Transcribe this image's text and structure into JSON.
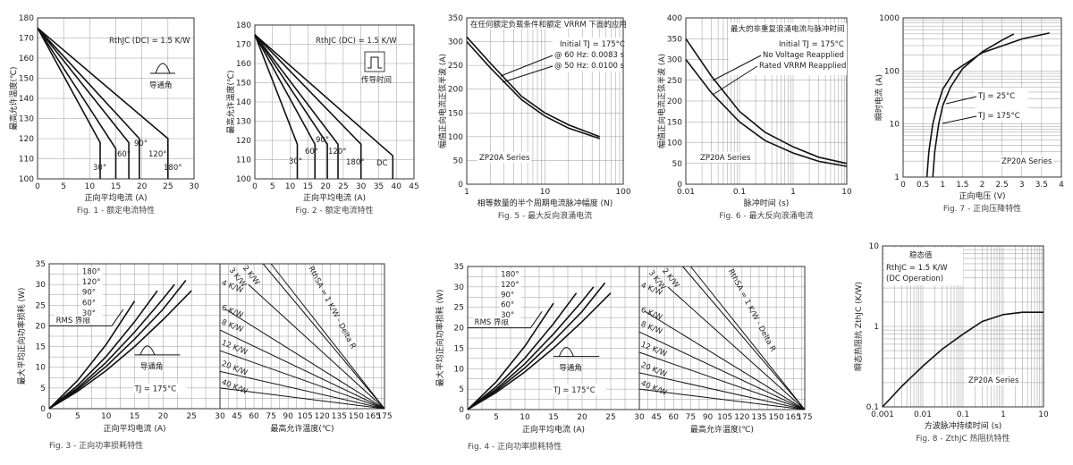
{
  "charts": [
    {
      "id": "fig1",
      "caption": "Fig. 1 - 额定电流特性",
      "xlabel": "正向平均电流 (A)",
      "ylabel": "最高允许温度(℃)",
      "annotations": [
        "RthJC (DC) = 1.5 K/W",
        "导通角"
      ],
      "curve_labels": [
        "30°",
        "60°",
        "90°",
        "120°",
        "180°"
      ]
    },
    {
      "id": "fig2",
      "caption": "Fig. 2 - 额定电流特性",
      "xlabel": "正向平均电流 (A)",
      "ylabel": "最高允许温度(℃)",
      "annotations": [
        "RthJC (DC) = 1.5 K/W",
        "传导时间"
      ],
      "curve_labels": [
        "30°",
        "60°",
        "90°",
        "120°",
        "180°",
        "DC"
      ]
    },
    {
      "id": "fig5",
      "caption": "Fig. 5 - 最大反向浪涌电流",
      "xlabel": "相等数量的半个周期电流脉冲幅度 (N)",
      "ylabel": "幅值正向电流正弦半波 (A)",
      "annotations": [
        "在任何额定负载条件和额定 VRRM 下面的应用",
        "Initial TJ = 175°C",
        "@ 60 Hz: 0.0083 s",
        "@ 50 Hz: 0.0100 s",
        "ZP20A Series"
      ]
    },
    {
      "id": "fig6",
      "caption": "Fig. 6 - 最大反向浪涌电流",
      "xlabel": "脉冲时间 (s)",
      "ylabel": "幅值正向电流正弦半波 (A)",
      "annotations": [
        "最大的非重复浪涌电流与脉冲时间",
        "Initial TJ = 175°C",
        "No Voltage Reapplied",
        "Rated VRRM Reapplied",
        "ZP20A Series"
      ]
    },
    {
      "id": "fig7",
      "caption": "Fig. 7 - 正向压降特性",
      "xlabel": "正向电压 (V)",
      "ylabel": "瞬时电流 (A)",
      "annotations": [
        "TJ = 25°C",
        "TJ = 175°C",
        "ZP20A Series"
      ]
    },
    {
      "id": "fig3",
      "caption": "Fig. 3 - 正向功率损耗特性",
      "xlabel_left": "正向平均电流 (A)",
      "xlabel_right": "最高允许温度(℃)",
      "ylabel": "最大平均正向功率损耗 (W)",
      "annotations": [
        "RMS 界限",
        "导通角",
        "TJ = 175°C",
        "RthSA = 1 K/W - Delta R"
      ],
      "curve_labels": [
        "180°",
        "120°",
        "90°",
        "60°",
        "30°"
      ],
      "rth_labels": [
        "3 K/W",
        "2 K/W",
        "4 K/W",
        "6 K/W",
        "8 K/W",
        "12 K/W",
        "20 K/W",
        "40 K/W"
      ]
    },
    {
      "id": "fig4",
      "caption": "Fig. 4 - 正向功率损耗特性",
      "xlabel_left": "正向平均电流 (A)",
      "xlabel_right": "最高允许温度(℃)",
      "ylabel": "最大平均正向功率损耗 (W)",
      "annotations": [
        "RMS 界限",
        "导通角",
        "TJ = 175°C",
        "RthSA = 1 K/W - Delta R"
      ],
      "curve_labels": [
        "180°",
        "120°",
        "90°",
        "60°",
        "30°"
      ],
      "rth_labels": [
        "3 K/W",
        "2 K/W",
        "4 K/W",
        "6 K/W",
        "8 K/W",
        "12 K/W",
        "20 K/W",
        "40 K/W"
      ]
    },
    {
      "id": "fig8",
      "caption": "Fig. 8 - ZthJC 热阻抗特性",
      "xlabel": "方波脉冲持续时间 (s)",
      "ylabel": "瞬态热阻抗 ZthJC (K/W)",
      "annotations": [
        "稳态值",
        "RthJC = 1.5 K/W",
        "(DC Operation)",
        "ZP20A Series"
      ]
    }
  ],
  "chart_data": [
    {
      "id": "fig1",
      "type": "line",
      "title": "",
      "xlabel": "正向平均电流 (A)",
      "ylabel": "最高允许温度(℃)",
      "xlim": [
        0,
        30
      ],
      "ylim": [
        100,
        180
      ],
      "xticks": [
        0,
        5,
        10,
        15,
        20,
        25,
        30
      ],
      "yticks": [
        100,
        110,
        120,
        130,
        140,
        150,
        160,
        170,
        180
      ],
      "series": [
        {
          "name": "30°",
          "x": [
            0,
            12,
            12
          ],
          "y": [
            175,
            118,
            100
          ]
        },
        {
          "name": "60°",
          "x": [
            0,
            15,
            15
          ],
          "y": [
            175,
            115,
            100
          ]
        },
        {
          "name": "90°",
          "x": [
            0,
            17.5,
            17.5
          ],
          "y": [
            175,
            118,
            100
          ]
        },
        {
          "name": "120°",
          "x": [
            0,
            19.5,
            19.5
          ],
          "y": [
            175,
            120,
            100
          ]
        },
        {
          "name": "180°",
          "x": [
            0,
            25,
            25
          ],
          "y": [
            175,
            120,
            100
          ]
        }
      ]
    },
    {
      "id": "fig2",
      "type": "line",
      "title": "",
      "xlabel": "正向平均电流 (A)",
      "ylabel": "最高允许温度(℃)",
      "xlim": [
        0,
        45
      ],
      "ylim": [
        100,
        180
      ],
      "xticks": [
        0,
        5,
        10,
        15,
        20,
        25,
        30,
        35,
        40,
        45
      ],
      "yticks": [
        100,
        110,
        120,
        130,
        140,
        150,
        160,
        170,
        180
      ],
      "series": [
        {
          "name": "30°",
          "x": [
            0,
            12,
            12
          ],
          "y": [
            175,
            118,
            100
          ]
        },
        {
          "name": "60°",
          "x": [
            0,
            17,
            17
          ],
          "y": [
            175,
            118,
            100
          ]
        },
        {
          "name": "90°",
          "x": [
            0,
            20.5,
            20.5
          ],
          "y": [
            175,
            118,
            100
          ]
        },
        {
          "name": "120°",
          "x": [
            0,
            23.5,
            23.5
          ],
          "y": [
            175,
            118,
            100
          ]
        },
        {
          "name": "180°",
          "x": [
            0,
            30,
            30
          ],
          "y": [
            175,
            118,
            100
          ]
        },
        {
          "name": "DC",
          "x": [
            0,
            39,
            39
          ],
          "y": [
            175,
            112,
            100
          ]
        }
      ]
    },
    {
      "id": "fig5",
      "type": "line",
      "title": "",
      "xlabel": "相等数量的半个周期电流脉冲幅度 (N)",
      "ylabel": "幅值正向电流正弦半波 (A)",
      "xscale": "log",
      "xlim": [
        1,
        100
      ],
      "ylim": [
        0,
        350
      ],
      "xticks": [
        1,
        10,
        100
      ],
      "yticks": [
        0,
        50,
        100,
        150,
        200,
        250,
        300,
        350
      ],
      "series": [
        {
          "name": "@ 60 Hz: 0.0083 s",
          "x": [
            1,
            2,
            5,
            10,
            20,
            50
          ],
          "y": [
            310,
            255,
            185,
            150,
            125,
            100
          ]
        },
        {
          "name": "@ 50 Hz: 0.0100 s",
          "x": [
            1,
            2,
            5,
            10,
            20,
            50
          ],
          "y": [
            300,
            245,
            178,
            143,
            118,
            96
          ]
        }
      ]
    },
    {
      "id": "fig6",
      "type": "line",
      "title": "",
      "xlabel": "脉冲时间 (s)",
      "ylabel": "幅值正向电流正弦半波 (A)",
      "xscale": "log",
      "xlim": [
        0.01,
        10
      ],
      "ylim": [
        0,
        400
      ],
      "xticks": [
        0.01,
        0.1,
        1,
        10
      ],
      "yticks": [
        0,
        50,
        100,
        150,
        200,
        250,
        300,
        350,
        400
      ],
      "series": [
        {
          "name": "No Voltage Reapplied",
          "x": [
            0.01,
            0.03,
            0.1,
            0.3,
            1,
            3,
            10
          ],
          "y": [
            350,
            260,
            175,
            125,
            90,
            65,
            50
          ]
        },
        {
          "name": "Rated VRRM Reapplied",
          "x": [
            0.01,
            0.03,
            0.1,
            0.3,
            1,
            3,
            10
          ],
          "y": [
            300,
            220,
            150,
            105,
            75,
            55,
            43
          ]
        }
      ]
    },
    {
      "id": "fig7",
      "type": "line",
      "title": "",
      "xlabel": "正向电压 (V)",
      "ylabel": "瞬时电流 (A)",
      "yscale": "log",
      "xlim": [
        0,
        4
      ],
      "ylim": [
        1,
        1000
      ],
      "xticks": [
        0,
        0.5,
        1,
        1.5,
        2,
        2.5,
        3,
        3.5,
        4
      ],
      "yticks": [
        1,
        10,
        100,
        1000
      ],
      "series": [
        {
          "name": "TJ = 25°C",
          "x": [
            0.75,
            0.8,
            0.9,
            1.0,
            1.2,
            1.5,
            2.0,
            2.5,
            2.8
          ],
          "y": [
            1,
            3,
            10,
            22,
            50,
            110,
            230,
            380,
            500
          ]
        },
        {
          "name": "TJ = 175°C",
          "x": [
            0.6,
            0.65,
            0.75,
            0.85,
            1.0,
            1.3,
            2.0,
            3.0,
            3.7
          ],
          "y": [
            1,
            3,
            10,
            20,
            45,
            100,
            220,
            400,
            520
          ]
        }
      ]
    },
    {
      "id": "fig3",
      "type": "line",
      "title": "",
      "xlabel": "正向平均电流 (A)",
      "ylabel": "最大平均正向功率损耗 (W)",
      "xlim": [
        0,
        30
      ],
      "ylim": [
        0,
        35
      ],
      "xticks": [
        0,
        5,
        10,
        15,
        20,
        25,
        30
      ],
      "yticks": [
        0,
        5,
        10,
        15,
        20,
        25,
        30,
        35
      ],
      "right_xlim": [
        30,
        175
      ],
      "right_xticks": [
        30,
        45,
        60,
        75,
        90,
        105,
        120,
        135,
        150,
        165,
        175
      ],
      "series": [
        {
          "name": "180°",
          "x": [
            0,
            5,
            10,
            15,
            20,
            25
          ],
          "y": [
            0,
            4.2,
            9.2,
            15,
            21.5,
            28.5
          ]
        },
        {
          "name": "120°",
          "x": [
            0,
            5,
            10,
            15,
            20,
            24
          ],
          "y": [
            0,
            4.6,
            10.2,
            16.8,
            24,
            31
          ]
        },
        {
          "name": "90°",
          "x": [
            0,
            5,
            10,
            15,
            20,
            22
          ],
          "y": [
            0,
            5,
            11.2,
            18.5,
            26.5,
            30
          ]
        },
        {
          "name": "60°",
          "x": [
            0,
            5,
            10,
            15,
            19
          ],
          "y": [
            0,
            5.6,
            12.6,
            21,
            28.5
          ]
        },
        {
          "name": "30°",
          "x": [
            0,
            5,
            10,
            15
          ],
          "y": [
            0,
            6.8,
            15.5,
            26
          ]
        }
      ],
      "rth_lines": [
        {
          "name": "2 K/W",
          "y0": 35,
          "t0": 75
        },
        {
          "name": "3 K/W",
          "y0": 35,
          "t0": 68
        },
        {
          "name": "4 K/W",
          "y0": 30,
          "t0": 55
        },
        {
          "name": "6 K/W",
          "y0": 24,
          "t0": 35
        },
        {
          "name": "8 K/W",
          "y0": 19,
          "t0": 30
        },
        {
          "name": "12 K/W",
          "y0": 14,
          "t0": 30
        },
        {
          "name": "20 K/W",
          "y0": 9,
          "t0": 30
        },
        {
          "name": "40 K/W",
          "y0": 5,
          "t0": 30
        }
      ]
    },
    {
      "id": "fig4",
      "type": "line",
      "title": "",
      "xlabel": "正向平均电流 (A)",
      "ylabel": "最大平均正向功率损耗 (W)",
      "xlim": [
        0,
        30
      ],
      "ylim": [
        0,
        35
      ],
      "xticks": [
        0,
        5,
        10,
        15,
        20,
        25,
        30
      ],
      "yticks": [
        0,
        5,
        10,
        15,
        20,
        25,
        30,
        35
      ],
      "right_xlim": [
        30,
        175
      ],
      "right_xticks": [
        30,
        45,
        60,
        75,
        90,
        105,
        120,
        135,
        150,
        165,
        175
      ],
      "series": [
        {
          "name": "180°",
          "x": [
            0,
            5,
            10,
            15,
            20,
            25
          ],
          "y": [
            0,
            4.2,
            9.2,
            15,
            21.5,
            28.5
          ]
        },
        {
          "name": "120°",
          "x": [
            0,
            5,
            10,
            15,
            20,
            24
          ],
          "y": [
            0,
            4.6,
            10.2,
            16.8,
            24,
            31
          ]
        },
        {
          "name": "90°",
          "x": [
            0,
            5,
            10,
            15,
            20,
            22
          ],
          "y": [
            0,
            5,
            11.2,
            18.5,
            26.5,
            30
          ]
        },
        {
          "name": "60°",
          "x": [
            0,
            5,
            10,
            15,
            19
          ],
          "y": [
            0,
            5.6,
            12.6,
            21,
            28.5
          ]
        },
        {
          "name": "30°",
          "x": [
            0,
            5,
            10,
            15
          ],
          "y": [
            0,
            6.8,
            15.5,
            26
          ]
        }
      ],
      "rth_lines": [
        {
          "name": "2 K/W",
          "y0": 35,
          "t0": 75
        },
        {
          "name": "3 K/W",
          "y0": 35,
          "t0": 68
        },
        {
          "name": "4 K/W",
          "y0": 30,
          "t0": 55
        },
        {
          "name": "6 K/W",
          "y0": 24,
          "t0": 35
        },
        {
          "name": "8 K/W",
          "y0": 19,
          "t0": 30
        },
        {
          "name": "12 K/W",
          "y0": 14,
          "t0": 30
        },
        {
          "name": "20 K/W",
          "y0": 9,
          "t0": 30
        },
        {
          "name": "40 K/W",
          "y0": 5,
          "t0": 30
        }
      ]
    },
    {
      "id": "fig8",
      "type": "line",
      "title": "",
      "xlabel": "方波脉冲持续时间 (s)",
      "ylabel": "瞬态热阻抗 ZthJC (K/W)",
      "xscale": "log",
      "yscale": "log",
      "xlim": [
        0.001,
        10
      ],
      "ylim": [
        0.1,
        10
      ],
      "xticks": [
        0.001,
        0.01,
        0.1,
        1,
        10
      ],
      "yticks": [
        0.1,
        1,
        10
      ],
      "series": [
        {
          "name": "ZP20A Series",
          "x": [
            0.001,
            0.003,
            0.01,
            0.03,
            0.1,
            0.3,
            1,
            3,
            10
          ],
          "y": [
            0.1,
            0.18,
            0.32,
            0.52,
            0.8,
            1.15,
            1.4,
            1.5,
            1.5
          ]
        }
      ]
    }
  ]
}
